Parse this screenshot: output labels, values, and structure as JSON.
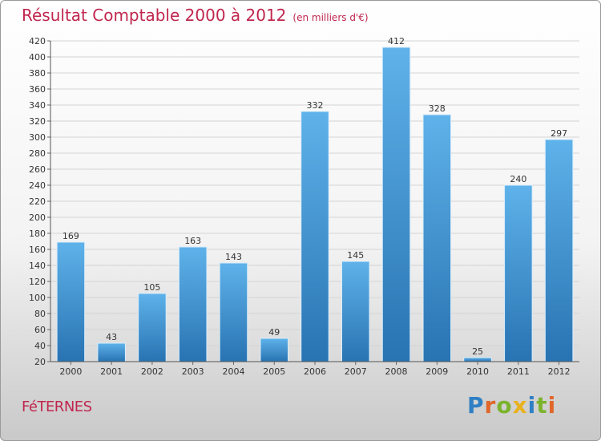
{
  "header": {
    "title": "Résultat Comptable 2000 à 2012",
    "subtitle": "(en milliers d'€)"
  },
  "commune": "FéTERNES",
  "logo": {
    "text": "Proxiti"
  },
  "colors": {
    "title": "#c0264e",
    "bar_light": "#5aaee8",
    "bar_dark": "#2a77b6"
  },
  "chart_data": {
    "type": "bar",
    "title": "Résultat Comptable 2000 à 2012 (en milliers d'€)",
    "xlabel": "",
    "ylabel": "",
    "categories": [
      "2000",
      "2001",
      "2002",
      "2003",
      "2004",
      "2005",
      "2006",
      "2007",
      "2008",
      "2009",
      "2010",
      "2011",
      "2012"
    ],
    "values": [
      169,
      43,
      105,
      163,
      143,
      49,
      332,
      145,
      412,
      328,
      25,
      240,
      297
    ],
    "ylim": [
      20,
      420
    ],
    "yticks": [
      20,
      40,
      60,
      80,
      100,
      120,
      140,
      160,
      180,
      200,
      220,
      240,
      260,
      280,
      300,
      320,
      340,
      360,
      380,
      400,
      420
    ],
    "grid": true,
    "legend": "none"
  }
}
